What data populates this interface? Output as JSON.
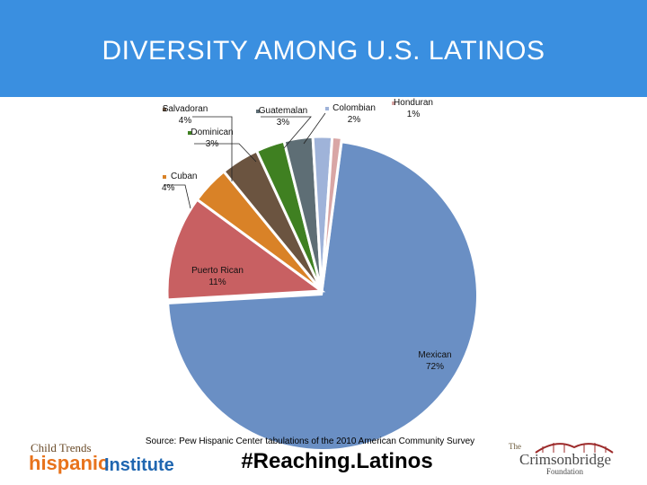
{
  "header": {
    "title": "DIVERSITY AMONG  U.S. LATINOS",
    "color": "#3a8fe0"
  },
  "chart_data": {
    "type": "pie",
    "categories": [
      "Mexican",
      "Puerto Rican",
      "Cuban",
      "Salvadoran",
      "Dominican",
      "Guatemalan",
      "Colombian",
      "Honduran"
    ],
    "values": [
      72,
      11,
      4,
      4,
      3,
      3,
      2,
      1
    ],
    "data_labels": [
      "72%",
      "11%",
      "4%",
      "4%",
      "3%",
      "3%",
      "2%",
      "1%"
    ],
    "colors": [
      "#6a8fc4",
      "#c86062",
      "#d98227",
      "#6b5440",
      "#3f8021",
      "#5e6e75",
      "#9fb3d9",
      "#d9a6a5"
    ],
    "exploded": true
  },
  "footer": {
    "source": "Source: Pew Hispanic Center tabulations of the 2010 American Community Survey",
    "hashtag": "#Reaching.Latinos",
    "logo_left": {
      "line1": "Child Trends",
      "line2": "hispanic",
      "line3": "Institute"
    },
    "logo_right": {
      "line1": "The",
      "line2": "Crimsonbridge",
      "line3": "Foundation"
    }
  }
}
